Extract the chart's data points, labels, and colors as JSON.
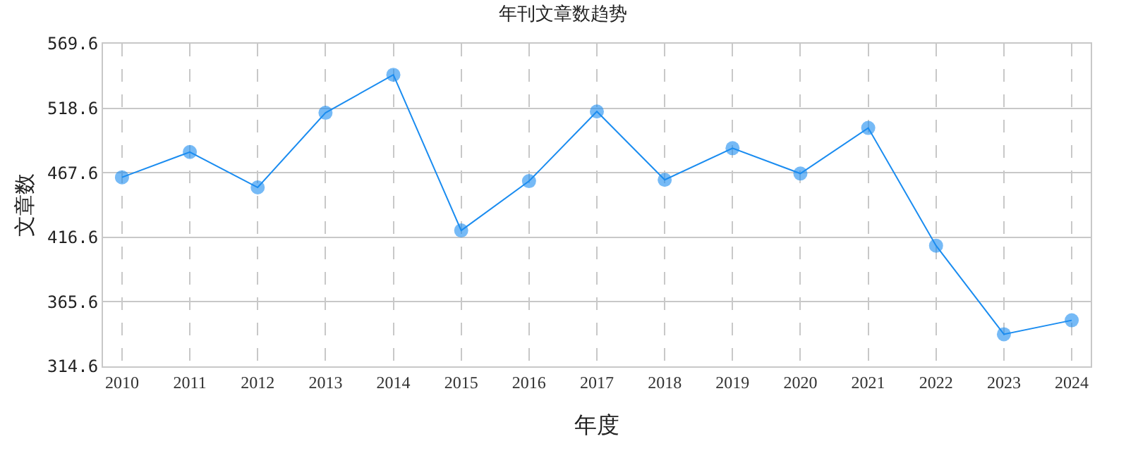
{
  "chart_data": {
    "type": "line",
    "title": "年刊文章数趋势",
    "xlabel": "年度",
    "ylabel": "文章数",
    "categories": [
      "2010",
      "2011",
      "2012",
      "2013",
      "2014",
      "2015",
      "2016",
      "2017",
      "2018",
      "2019",
      "2020",
      "2021",
      "2022",
      "2023",
      "2024"
    ],
    "series": [
      {
        "color": "#1a8cf0",
        "values": [
          464,
          484,
          456,
          515,
          545,
          422,
          461,
          516,
          462,
          487,
          467,
          503,
          410,
          340,
          351
        ]
      }
    ],
    "ylim": [
      314.6,
      569.6
    ],
    "yticks": [
      314.6,
      365.6,
      416.6,
      467.6,
      518.6,
      569.6
    ],
    "grid": true,
    "marker": "circle",
    "line_style": "solid"
  }
}
